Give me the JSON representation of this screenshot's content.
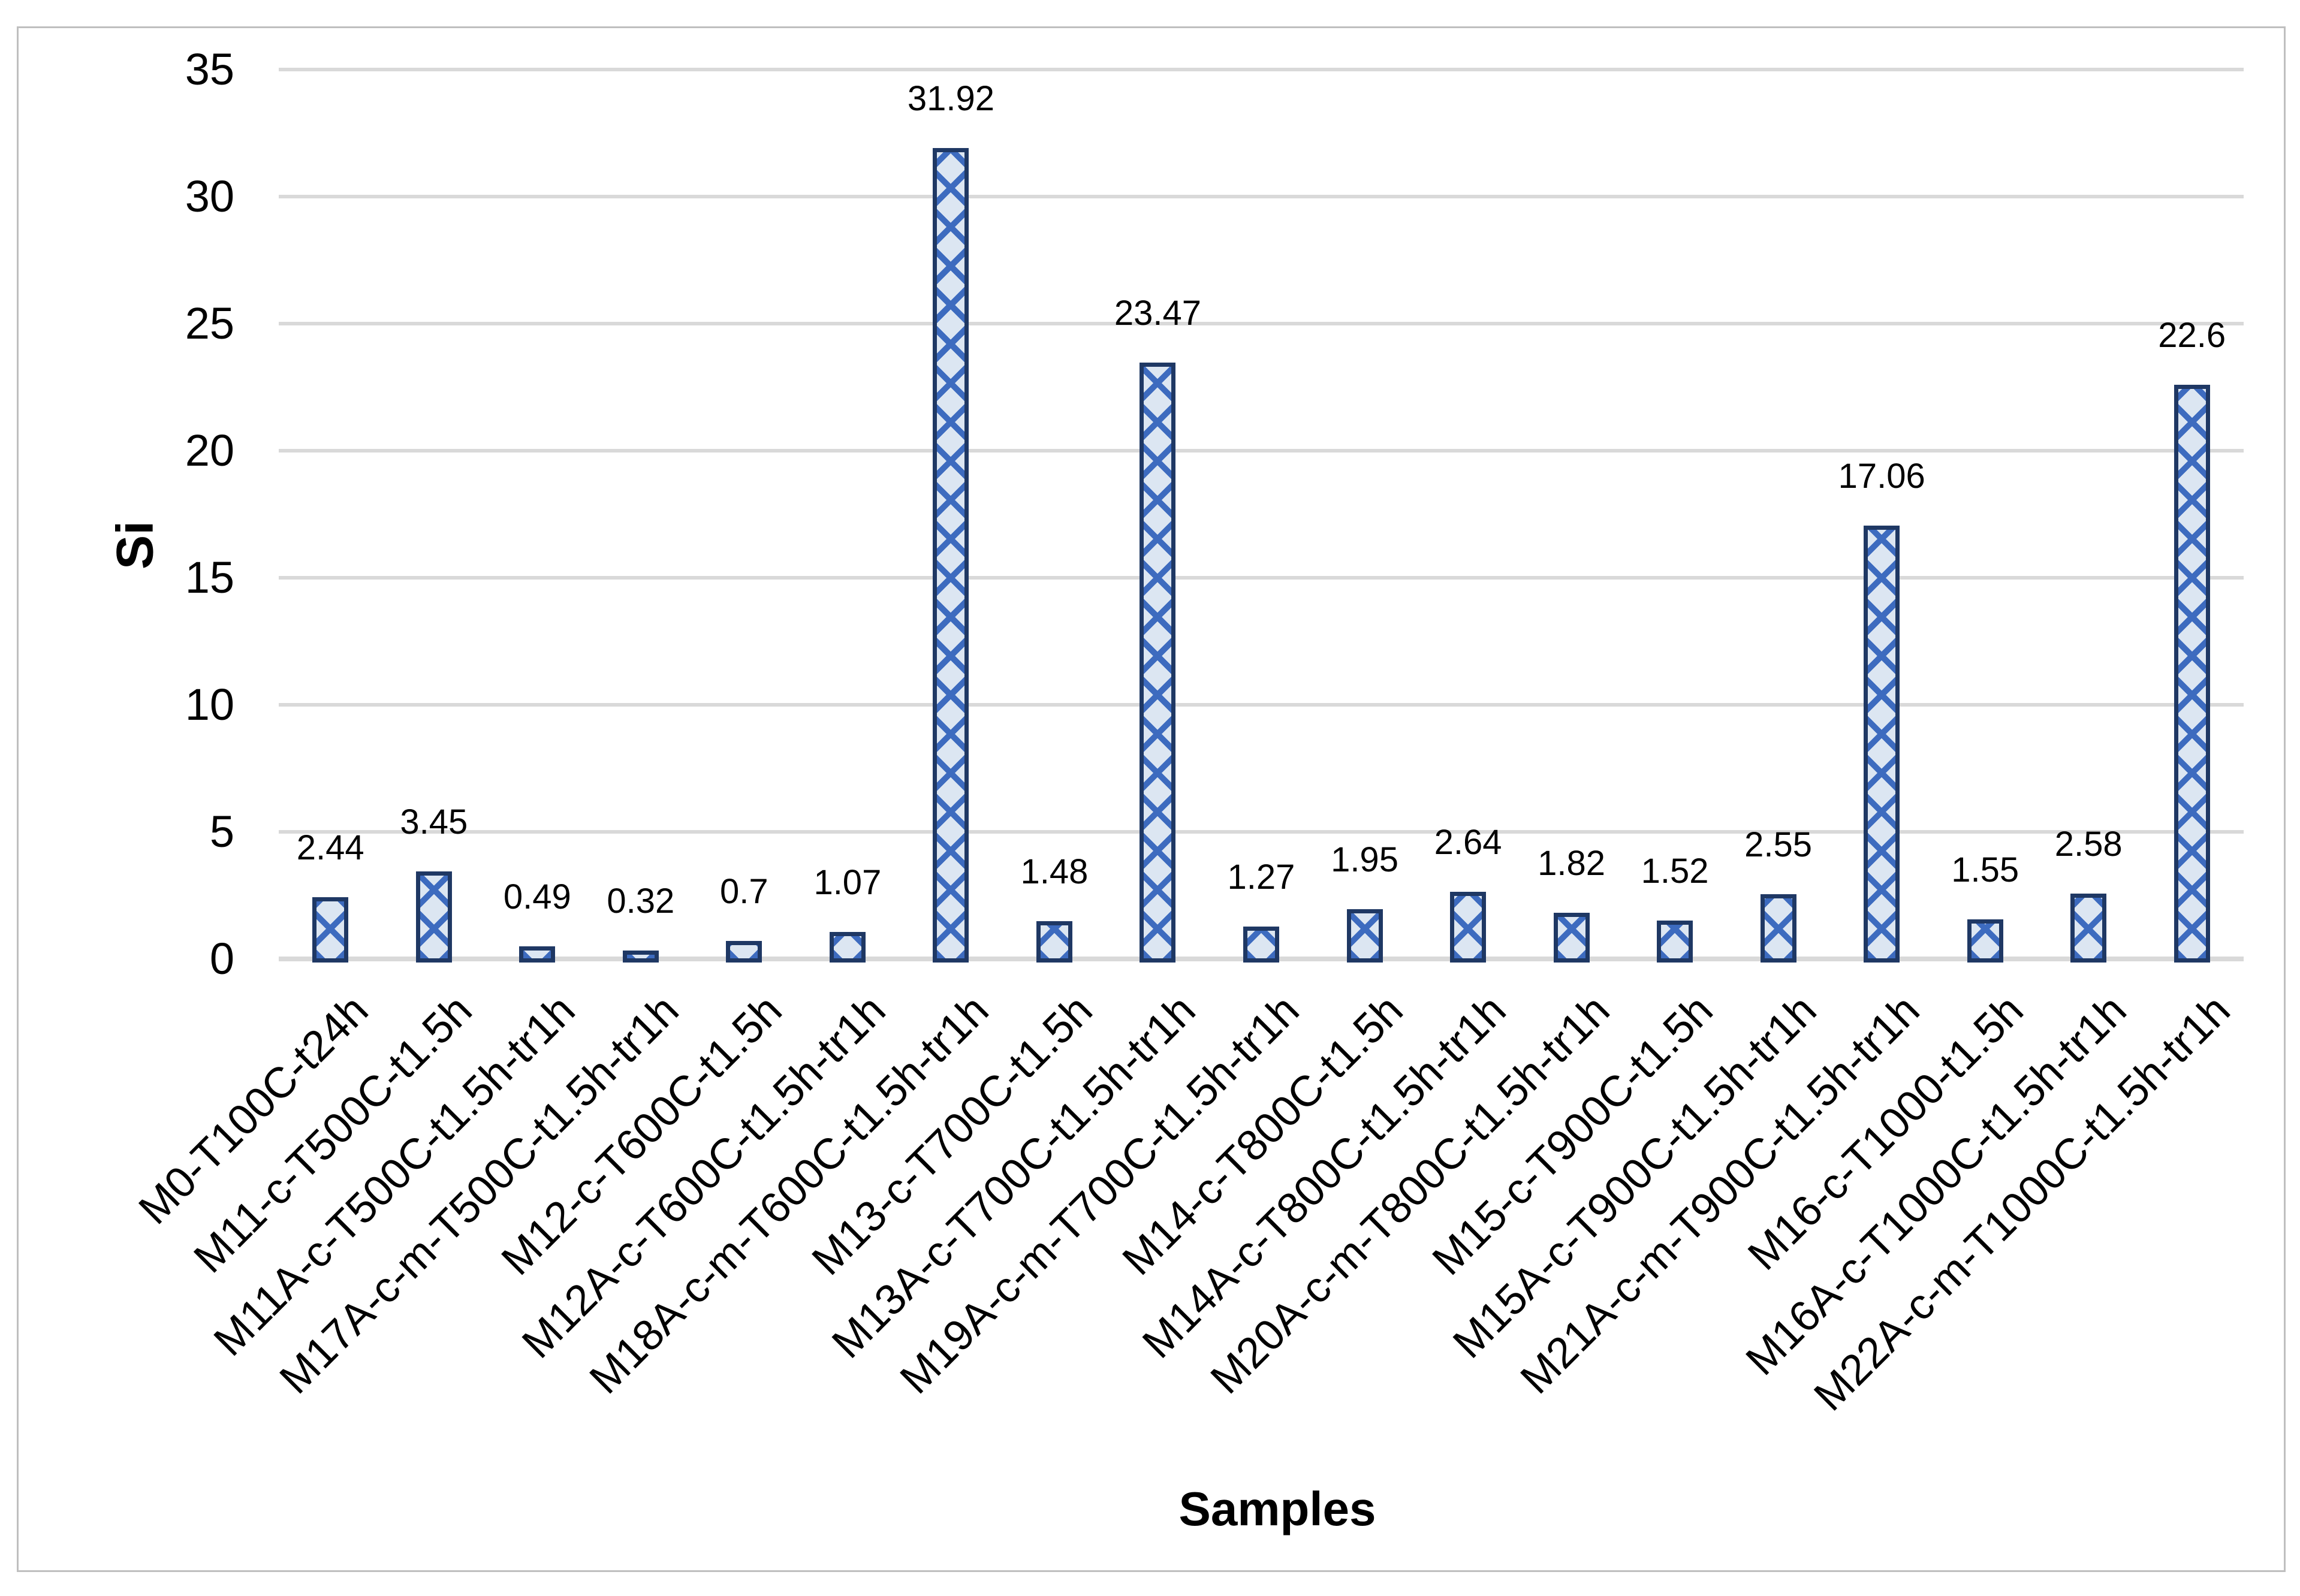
{
  "chart_data": {
    "type": "bar",
    "title": "",
    "xlabel": "Samples",
    "ylabel": "Si",
    "ylim": [
      0,
      35
    ],
    "ytick_step": 5,
    "ytick_labels": [
      "0",
      "5",
      "10",
      "15",
      "20",
      "25",
      "30",
      "35"
    ],
    "grid": true,
    "legend": "none",
    "categories": [
      "M0-T100C-t24h",
      "M11-c-T500C-t1.5h",
      "M11A-c-T500C-t1.5h-tr1h",
      "M17A-c-m-T500C-t1.5h-tr1h",
      "M12-c-T600C-t1.5h",
      "M12A-c-T600C-t1.5h-tr1h",
      "M18A-c-m-T600C-t1.5h-tr1h",
      "M13-c-T700C-t1.5h",
      "M13A-c-T700C-t1.5h-tr1h",
      "M19A-c-m-T700C-t1.5h-tr1h",
      "M14-c-T800C-t1.5h",
      "M14A-c-T800C-t1.5h-tr1h",
      "M20A-c-m-T800C-t1.5h-tr1h",
      "M15-c-T900C-t1.5h",
      "M15A-c-T900C-t1.5h-tr1h",
      "M21A-c-m-T900C-t1.5h-tr1h",
      "M16-c-T1000-t1.5h",
      "M16A-c-T1000C-t1.5h-tr1h",
      "M22A-c-m-T1000C-t1.5h-tr1h"
    ],
    "values": [
      2.44,
      3.45,
      0.49,
      0.32,
      0.7,
      1.07,
      31.92,
      1.48,
      23.47,
      1.27,
      1.95,
      2.64,
      1.82,
      1.52,
      2.55,
      17.06,
      1.55,
      2.58,
      22.6
    ],
    "value_labels": [
      "2.44",
      "3.45",
      "0.49",
      "0.32",
      "0.7",
      "1.07",
      "31.92",
      "1.48",
      "23.47",
      "1.27",
      "1.95",
      "2.64",
      "1.82",
      "1.52",
      "2.55",
      "17.06",
      "1.55",
      "2.58",
      "22.6"
    ]
  },
  "colors": {
    "bar_fill": "#dce6f2",
    "bar_pattern": "#3d6bbf",
    "bar_border": "#1f3864",
    "gridline": "#d9d9d9",
    "axis_line": "#d9d9d9",
    "text": "#000000",
    "frame_border": "#bfbfbf",
    "background": "#ffffff"
  }
}
